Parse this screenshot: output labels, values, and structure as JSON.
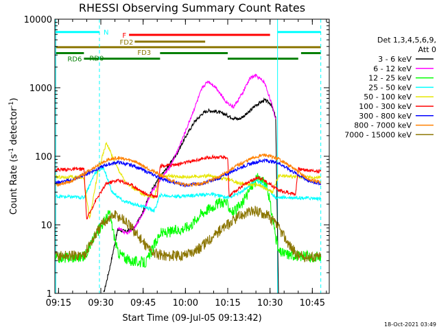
{
  "chart_data": {
    "type": "line",
    "title": "RHESSI Observing Summary Count Rates",
    "xlabel": "Start Time (09-Jul-05 09:13:42)",
    "ylabel": "Count Rate (s",
    "ylabel_sup": "-1",
    "ylabel_tail": " detector",
    "ylabel_end": ")",
    "y_log": true,
    "xlim": [
      "09:13:42",
      "10:51:00"
    ],
    "ylim": [
      1,
      10000
    ],
    "x_ticks": [
      "09:15",
      "09:30",
      "09:45",
      "10:00",
      "10:15",
      "10:30",
      "10:45"
    ],
    "y_ticks": [
      {
        "v": 1,
        "label": "1"
      },
      {
        "v": 10,
        "label": "10"
      },
      {
        "v": 100,
        "label": "100"
      },
      {
        "v": 1000,
        "label": "1000"
      },
      {
        "v": 10000,
        "label": "10000"
      }
    ],
    "legend": {
      "placement": "right",
      "header": [
        "Det 1,3,4,5,6,9,",
        "Att 0"
      ],
      "entries": [
        {
          "label": "3 - 6 keV",
          "color": "#000000"
        },
        {
          "label": "6 - 12 keV",
          "color": "#ff00ff"
        },
        {
          "label": "12 - 25 keV",
          "color": "#00ff00"
        },
        {
          "label": "25 - 50 keV",
          "color": "#00ffff"
        },
        {
          "label": "50 - 100 keV",
          "color": "#e6e600"
        },
        {
          "label": "100 - 300 keV",
          "color": "#ff0000"
        },
        {
          "label": "300 - 800 keV",
          "color": "#0000ff"
        },
        {
          "label": "800 - 7000 keV",
          "color": "#ff8000"
        },
        {
          "label": "7000 - 15000 keV",
          "color": "#8b7500"
        }
      ]
    },
    "night_markers": {
      "color": "#00ffff",
      "solid": [
        "09:14:00",
        "10:32:40"
      ],
      "dashed": [
        "09:29:30",
        "10:48:00"
      ]
    },
    "flags": [
      {
        "label": "N",
        "color": "#00ffff",
        "y": 6500,
        "segments": [
          [
            "09:14:00",
            "09:29:30"
          ],
          [
            "10:32:40",
            "10:48:00"
          ]
        ]
      },
      {
        "label": "F",
        "color": "#ff0000",
        "y": 5900,
        "segments": [
          [
            "09:40:00",
            "10:30:00"
          ]
        ]
      },
      {
        "label": "FD2",
        "color": "#8b7500",
        "y": 4700,
        "segments": [
          [
            "09:42:00",
            "10:07:00"
          ]
        ]
      },
      {
        "label": "FD3",
        "color": "#8b7500",
        "y": 3900,
        "segments": [
          [
            "09:14:00",
            "10:48:00"
          ]
        ]
      },
      {
        "label": "RD0",
        "color": "#007f00",
        "y": 3200,
        "segments": [
          [
            "09:14:00",
            "09:24:00"
          ],
          [
            "09:51:00",
            "10:15:00"
          ],
          [
            "10:41:00",
            "10:48:00"
          ]
        ]
      },
      {
        "label": "RD6",
        "color": "#007f00",
        "y": 2650,
        "segments": [
          [
            "09:24:00",
            "09:51:00"
          ],
          [
            "10:15:00",
            "10:40:00"
          ]
        ]
      }
    ],
    "series": [
      {
        "name": "3 - 6 keV",
        "color": "#000000",
        "points": [
          [
            "09:31:00",
            1.0
          ],
          [
            "09:33:00",
            2.2
          ],
          [
            "09:36:00",
            8.5
          ],
          [
            "09:39:00",
            8.0
          ],
          [
            "09:42:00",
            9.0
          ],
          [
            "09:45:00",
            16
          ],
          [
            "09:48:00",
            32
          ],
          [
            "09:51:00",
            50
          ],
          [
            "09:54:00",
            72
          ],
          [
            "09:57:00",
            110
          ],
          [
            "10:00:00",
            190
          ],
          [
            "10:03:00",
            310
          ],
          [
            "10:06:00",
            420
          ],
          [
            "10:08:00",
            465
          ],
          [
            "10:11:00",
            450
          ],
          [
            "10:14:00",
            410
          ],
          [
            "10:17:00",
            360
          ],
          [
            "10:19:00",
            350
          ],
          [
            "10:22:00",
            420
          ],
          [
            "10:25:00",
            560
          ],
          [
            "10:28:00",
            660
          ],
          [
            "10:30:00",
            600
          ],
          [
            "10:32:00",
            380
          ],
          [
            "10:33:00",
            1.0
          ]
        ]
      },
      {
        "name": "6 - 12 keV",
        "color": "#ff00ff",
        "points": [
          [
            "09:36:00",
            9.0
          ],
          [
            "09:39:00",
            7.5
          ],
          [
            "09:42:00",
            9.0
          ],
          [
            "09:45:00",
            15
          ],
          [
            "09:48:00",
            30
          ],
          [
            "09:51:00",
            45
          ],
          [
            "09:54:00",
            65
          ],
          [
            "09:57:00",
            115
          ],
          [
            "10:00:00",
            230
          ],
          [
            "10:03:00",
            480
          ],
          [
            "10:06:00",
            1000
          ],
          [
            "10:08:00",
            1250
          ],
          [
            "10:11:00",
            1000
          ],
          [
            "10:14:00",
            650
          ],
          [
            "10:17:00",
            520
          ],
          [
            "10:20:00",
            800
          ],
          [
            "10:23:00",
            1400
          ],
          [
            "10:25:00",
            1500
          ],
          [
            "10:28:00",
            1200
          ],
          [
            "10:30:00",
            700
          ],
          [
            "10:32:00",
            350
          ]
        ]
      },
      {
        "name": "12 - 25 keV",
        "color": "#00ff00",
        "points": [
          [
            "09:14:00",
            3.3
          ],
          [
            "09:24:00",
            3.4
          ],
          [
            "09:28:00",
            7.0
          ],
          [
            "09:33:00",
            15
          ],
          [
            "09:36:00",
            4.0
          ],
          [
            "09:40:00",
            3.0
          ],
          [
            "09:46:00",
            2.8
          ],
          [
            "09:51:00",
            7.5
          ],
          [
            "09:54:00",
            7.8
          ],
          [
            "09:58:00",
            8.5
          ],
          [
            "10:02:00",
            10
          ],
          [
            "10:05:00",
            14
          ],
          [
            "10:08:00",
            17
          ],
          [
            "10:11:00",
            20
          ],
          [
            "10:14:00",
            22
          ],
          [
            "10:17:00",
            15
          ],
          [
            "10:20:00",
            20
          ],
          [
            "10:24:00",
            40
          ],
          [
            "10:26:00",
            50
          ],
          [
            "10:29:00",
            35
          ],
          [
            "10:33:00",
            4.0
          ],
          [
            "10:40:00",
            3.5
          ],
          [
            "10:48:00",
            3.4
          ]
        ]
      },
      {
        "name": "25 - 50 keV",
        "color": "#00ffff",
        "points": [
          [
            "09:14:00",
            26
          ],
          [
            "09:24:00",
            25
          ],
          [
            "09:28:00",
            58
          ],
          [
            "09:31:00",
            68
          ],
          [
            "09:34:00",
            30
          ],
          [
            "09:38:00",
            22
          ],
          [
            "09:42:00",
            20
          ],
          [
            "09:46:00",
            18
          ],
          [
            "09:49:00",
            16
          ],
          [
            "09:51:00",
            27
          ],
          [
            "09:57:00",
            26
          ],
          [
            "10:03:00",
            27
          ],
          [
            "10:09:00",
            28
          ],
          [
            "10:15:00",
            25
          ],
          [
            "10:20:00",
            30
          ],
          [
            "10:25:00",
            45
          ],
          [
            "10:28:00",
            38
          ],
          [
            "10:32:00",
            25
          ],
          [
            "10:40:00",
            25
          ],
          [
            "10:48:00",
            24
          ]
        ]
      },
      {
        "name": "50 - 100 keV",
        "color": "#e6e600",
        "points": [
          [
            "09:14:00",
            50
          ],
          [
            "09:24:00",
            49
          ],
          [
            "09:26:00",
            12
          ],
          [
            "09:29:00",
            60
          ],
          [
            "09:32:00",
            160
          ],
          [
            "09:35:00",
            80
          ],
          [
            "09:39:00",
            40
          ],
          [
            "09:45:00",
            28
          ],
          [
            "09:49:00",
            25
          ],
          [
            "09:51:00",
            52
          ],
          [
            "10:00:00",
            50
          ],
          [
            "10:08:00",
            52
          ],
          [
            "10:15:00",
            46
          ],
          [
            "10:20:00",
            40
          ],
          [
            "10:26:00",
            38
          ],
          [
            "10:31:00",
            30
          ],
          [
            "10:33:00",
            52
          ],
          [
            "10:40:00",
            50
          ],
          [
            "10:48:00",
            49
          ]
        ]
      },
      {
        "name": "100 - 300 keV",
        "color": "#ff0000",
        "points": [
          [
            "09:14:00",
            64
          ],
          [
            "09:24:00",
            65
          ],
          [
            "09:25:00",
            12
          ],
          [
            "09:28:00",
            22
          ],
          [
            "09:32:00",
            40
          ],
          [
            "09:36:00",
            45
          ],
          [
            "09:41:00",
            38
          ],
          [
            "09:46:00",
            28
          ],
          [
            "09:50:00",
            26
          ],
          [
            "09:51:00",
            72
          ],
          [
            "09:57:00",
            76
          ],
          [
            "10:03:00",
            86
          ],
          [
            "10:09:00",
            98
          ],
          [
            "10:15:00",
            95
          ],
          [
            "10:15:30",
            26
          ],
          [
            "10:20:00",
            37
          ],
          [
            "10:26:00",
            50
          ],
          [
            "10:31:00",
            37
          ],
          [
            "10:33:00",
            32
          ],
          [
            "10:39:00",
            28
          ],
          [
            "10:40:00",
            65
          ],
          [
            "10:48:00",
            60
          ]
        ]
      },
      {
        "name": "300 - 800 keV",
        "color": "#0000ff",
        "points": [
          [
            "09:14:00",
            41
          ],
          [
            "09:20:00",
            45
          ],
          [
            "09:26:00",
            58
          ],
          [
            "09:32:00",
            75
          ],
          [
            "09:36:00",
            82
          ],
          [
            "09:42:00",
            72
          ],
          [
            "09:48:00",
            55
          ],
          [
            "09:54:00",
            43
          ],
          [
            "10:00:00",
            38
          ],
          [
            "10:06:00",
            40
          ],
          [
            "10:12:00",
            48
          ],
          [
            "10:18:00",
            65
          ],
          [
            "10:24:00",
            80
          ],
          [
            "10:28:00",
            88
          ],
          [
            "10:33:00",
            80
          ],
          [
            "10:38:00",
            60
          ],
          [
            "10:44:00",
            43
          ],
          [
            "10:48:00",
            40
          ]
        ]
      },
      {
        "name": "800 - 7000 keV",
        "color": "#ff8000",
        "points": [
          [
            "09:14:00",
            38
          ],
          [
            "09:20:00",
            44
          ],
          [
            "09:26:00",
            62
          ],
          [
            "09:32:00",
            88
          ],
          [
            "09:36:00",
            95
          ],
          [
            "09:42:00",
            85
          ],
          [
            "09:48:00",
            62
          ],
          [
            "09:54:00",
            46
          ],
          [
            "10:00:00",
            38
          ],
          [
            "10:06:00",
            40
          ],
          [
            "10:12:00",
            50
          ],
          [
            "10:18:00",
            72
          ],
          [
            "10:24:00",
            95
          ],
          [
            "10:28:00",
            105
          ],
          [
            "10:33:00",
            92
          ],
          [
            "10:38:00",
            68
          ],
          [
            "10:44:00",
            45
          ],
          [
            "10:48:00",
            42
          ]
        ]
      },
      {
        "name": "7000 - 15000 keV",
        "color": "#8b7500",
        "points": [
          [
            "09:14:00",
            3.5
          ],
          [
            "09:24:00",
            3.6
          ],
          [
            "09:28:00",
            7.0
          ],
          [
            "09:31:00",
            11
          ],
          [
            "09:35:00",
            14
          ],
          [
            "09:38:00",
            12
          ],
          [
            "09:42:00",
            8.0
          ],
          [
            "09:45:00",
            5.5
          ],
          [
            "09:49:00",
            3.8
          ],
          [
            "09:54:00",
            3.5
          ],
          [
            "09:59:00",
            3.6
          ],
          [
            "10:05:00",
            4.5
          ],
          [
            "10:10:00",
            7.0
          ],
          [
            "10:15:00",
            10
          ],
          [
            "10:20:00",
            14
          ],
          [
            "10:25:00",
            16
          ],
          [
            "10:29:00",
            14
          ],
          [
            "10:33:00",
            9.0
          ],
          [
            "10:37:00",
            5.0
          ],
          [
            "10:40:00",
            3.5
          ],
          [
            "10:48:00",
            3.4
          ]
        ]
      }
    ],
    "footer_date": "18-Oct-2021 03:49"
  }
}
